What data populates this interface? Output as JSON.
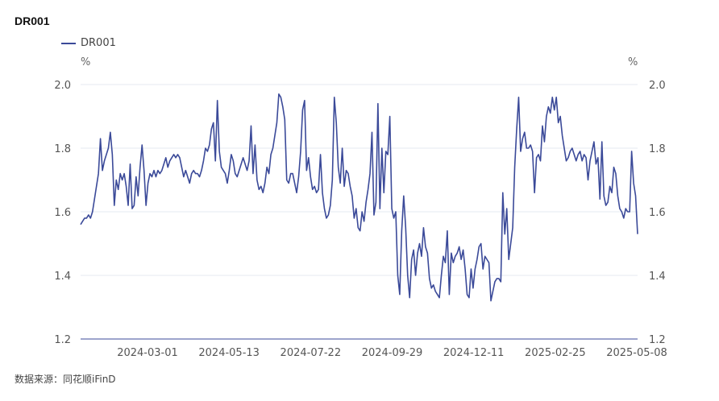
{
  "title": "DR001",
  "legend": {
    "label": "DR001",
    "color": "#3b4a99"
  },
  "unit_left": "%",
  "unit_right": "%",
  "source": "数据来源：同花顺iFinD",
  "chart_data": {
    "type": "line",
    "title": "DR001",
    "xlabel": "",
    "ylabel": "%",
    "ylim": [
      1.2,
      2.0
    ],
    "yticks": [
      "2.0",
      "1.8",
      "1.6",
      "1.4",
      "1.2"
    ],
    "xticks": [
      "2024-03-01",
      "2024-05-13",
      "2024-07-22",
      "2024-09-29",
      "2024-12-11",
      "2025-02-25",
      "2025-05-08"
    ],
    "grid": true,
    "series": [
      {
        "name": "DR001",
        "color": "#3b4a99",
        "values": [
          1.56,
          1.57,
          1.58,
          1.58,
          1.59,
          1.58,
          1.6,
          1.64,
          1.68,
          1.72,
          1.83,
          1.73,
          1.76,
          1.78,
          1.8,
          1.85,
          1.78,
          1.62,
          1.7,
          1.67,
          1.72,
          1.7,
          1.72,
          1.68,
          1.62,
          1.75,
          1.61,
          1.62,
          1.71,
          1.65,
          1.74,
          1.81,
          1.73,
          1.62,
          1.69,
          1.72,
          1.71,
          1.73,
          1.71,
          1.73,
          1.72,
          1.73,
          1.75,
          1.77,
          1.74,
          1.76,
          1.77,
          1.78,
          1.77,
          1.78,
          1.77,
          1.74,
          1.71,
          1.73,
          1.71,
          1.69,
          1.72,
          1.73,
          1.72,
          1.72,
          1.71,
          1.73,
          1.76,
          1.8,
          1.79,
          1.81,
          1.86,
          1.88,
          1.76,
          1.95,
          1.79,
          1.74,
          1.73,
          1.72,
          1.69,
          1.73,
          1.78,
          1.76,
          1.72,
          1.71,
          1.73,
          1.75,
          1.77,
          1.75,
          1.73,
          1.76,
          1.87,
          1.72,
          1.81,
          1.7,
          1.67,
          1.68,
          1.66,
          1.69,
          1.74,
          1.72,
          1.78,
          1.8,
          1.84,
          1.88,
          1.97,
          1.96,
          1.93,
          1.89,
          1.7,
          1.69,
          1.72,
          1.72,
          1.69,
          1.66,
          1.71,
          1.79,
          1.92,
          1.95,
          1.73,
          1.77,
          1.71,
          1.67,
          1.68,
          1.66,
          1.67,
          1.78,
          1.66,
          1.61,
          1.58,
          1.59,
          1.62,
          1.7,
          1.96,
          1.88,
          1.74,
          1.69,
          1.8,
          1.68,
          1.73,
          1.72,
          1.68,
          1.65,
          1.58,
          1.61,
          1.55,
          1.54,
          1.6,
          1.57,
          1.63,
          1.67,
          1.72,
          1.85,
          1.59,
          1.63,
          1.94,
          1.61,
          1.8,
          1.66,
          1.79,
          1.78,
          1.9,
          1.61,
          1.58,
          1.6,
          1.4,
          1.34,
          1.54,
          1.65,
          1.55,
          1.4,
          1.33,
          1.45,
          1.48,
          1.4,
          1.47,
          1.5,
          1.46,
          1.55,
          1.49,
          1.47,
          1.39,
          1.36,
          1.37,
          1.35,
          1.34,
          1.33,
          1.4,
          1.46,
          1.44,
          1.54,
          1.34,
          1.47,
          1.44,
          1.46,
          1.47,
          1.49,
          1.45,
          1.48,
          1.42,
          1.34,
          1.33,
          1.42,
          1.36,
          1.42,
          1.45,
          1.49,
          1.5,
          1.42,
          1.46,
          1.45,
          1.44,
          1.32,
          1.35,
          1.38,
          1.39,
          1.39,
          1.38,
          1.66,
          1.53,
          1.61,
          1.45,
          1.5,
          1.55,
          1.74,
          1.86,
          1.96,
          1.79,
          1.83,
          1.85,
          1.8,
          1.8,
          1.81,
          1.79,
          1.66,
          1.77,
          1.78,
          1.76,
          1.87,
          1.82,
          1.9,
          1.93,
          1.91,
          1.96,
          1.92,
          1.96,
          1.88,
          1.9,
          1.84,
          1.8,
          1.76,
          1.77,
          1.79,
          1.8,
          1.78,
          1.76,
          1.78,
          1.79,
          1.76,
          1.78,
          1.77,
          1.7,
          1.76,
          1.79,
          1.82,
          1.75,
          1.77,
          1.64,
          1.82,
          1.65,
          1.62,
          1.63,
          1.68,
          1.66,
          1.74,
          1.72,
          1.65,
          1.61,
          1.6,
          1.58,
          1.61,
          1.6,
          1.6,
          1.79,
          1.69,
          1.65,
          1.53
        ]
      }
    ]
  }
}
